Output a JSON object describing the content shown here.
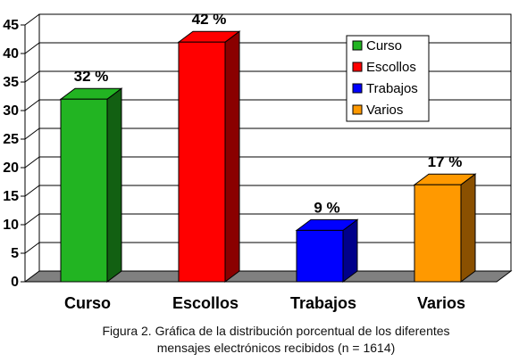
{
  "chart_data": {
    "type": "bar",
    "categories": [
      "Curso",
      "Escollos",
      "Trabajos",
      "Varios"
    ],
    "values": [
      32,
      42,
      9,
      17
    ],
    "data_labels": [
      "32 %",
      "42 %",
      "9 %",
      "17 %"
    ],
    "colors": [
      "#22b422",
      "#ff0000",
      "#0000ff",
      "#ff9900"
    ],
    "side_colors": [
      "#126012",
      "#8a0000",
      "#00008a",
      "#8a5000"
    ],
    "yticks": [
      "0",
      "5",
      "10",
      "15",
      "20",
      "25",
      "30",
      "35",
      "40",
      "45"
    ],
    "ylim": [
      0,
      45
    ],
    "grid": true,
    "style": "3d-bars",
    "legend": {
      "placement": "top-right",
      "entries": [
        "Curso",
        "Escollos",
        "Trabajos",
        "Varios"
      ]
    }
  },
  "caption": {
    "line1": "Figura 2. Gráfica de la distribución porcentual de los diferentes",
    "line2": "mensajes electrónicos recibidos (n = 1614)"
  }
}
